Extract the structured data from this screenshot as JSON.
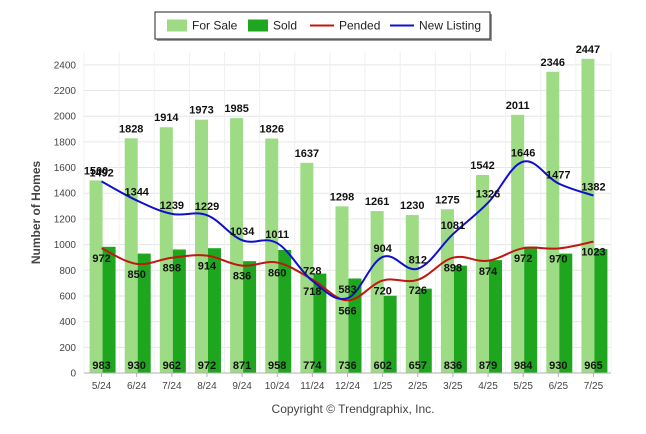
{
  "chart_data": {
    "type": "bar",
    "title": "",
    "xlabel": "",
    "ylabel": "Number of Homes",
    "ylim": [
      0,
      2500
    ],
    "yticks": [
      0,
      200,
      400,
      600,
      800,
      1000,
      1200,
      1400,
      1600,
      1800,
      2000,
      2200,
      2400
    ],
    "grid": true,
    "legend_position": "top-center",
    "categories": [
      "5/24",
      "6/24",
      "7/24",
      "8/24",
      "9/24",
      "10/24",
      "11/24",
      "12/24",
      "1/25",
      "2/25",
      "3/25",
      "4/25",
      "5/25",
      "6/25",
      "7/25"
    ],
    "series": [
      {
        "name": "For Sale",
        "type": "bar",
        "color": "#9ddb85",
        "values": [
          1500,
          1828,
          1914,
          1973,
          1985,
          1826,
          1637,
          1298,
          1261,
          1230,
          1275,
          1542,
          2011,
          2346,
          2447
        ],
        "labels": [
          "1500",
          "1828",
          "1914",
          "1973",
          "1985",
          "1826",
          "1637",
          "1298",
          "1261",
          "1230",
          "1275",
          "1542",
          "2011",
          "2346",
          "2447"
        ]
      },
      {
        "name": "Sold",
        "type": "bar",
        "color": "#1ea61e",
        "values": [
          983,
          930,
          962,
          972,
          871,
          958,
          774,
          736,
          602,
          657,
          836,
          879,
          984,
          930,
          965
        ],
        "labels": [
          "983",
          "930",
          "962",
          "972",
          "871",
          "958",
          "774",
          "736",
          "602",
          "657",
          "836",
          "879",
          "984",
          "930",
          "965"
        ]
      },
      {
        "name": "Pended",
        "type": "line",
        "color": "#c0180f",
        "values": [
          972,
          850,
          898,
          914,
          836,
          860,
          728,
          566,
          720,
          726,
          898,
          874,
          972,
          970,
          1023
        ],
        "labels": [
          "972",
          "850",
          "898",
          "914",
          "836",
          "860",
          "728",
          "566",
          "720",
          "726",
          "898",
          "874",
          "972",
          "970",
          "1023"
        ]
      },
      {
        "name": "New Listing",
        "type": "line",
        "color": "#1010cc",
        "values": [
          1492,
          1344,
          1239,
          1229,
          1034,
          1011,
          718,
          583,
          904,
          812,
          1081,
          1326,
          1646,
          1477,
          1382
        ],
        "labels": [
          "1492",
          "1344",
          "1239",
          "1229",
          "1034",
          "1011",
          "718",
          "583",
          "904",
          "812",
          "1081",
          "1326",
          "1646",
          "1477",
          "1382"
        ]
      }
    ]
  },
  "copyright": "Copyright © Trendgraphix, Inc."
}
